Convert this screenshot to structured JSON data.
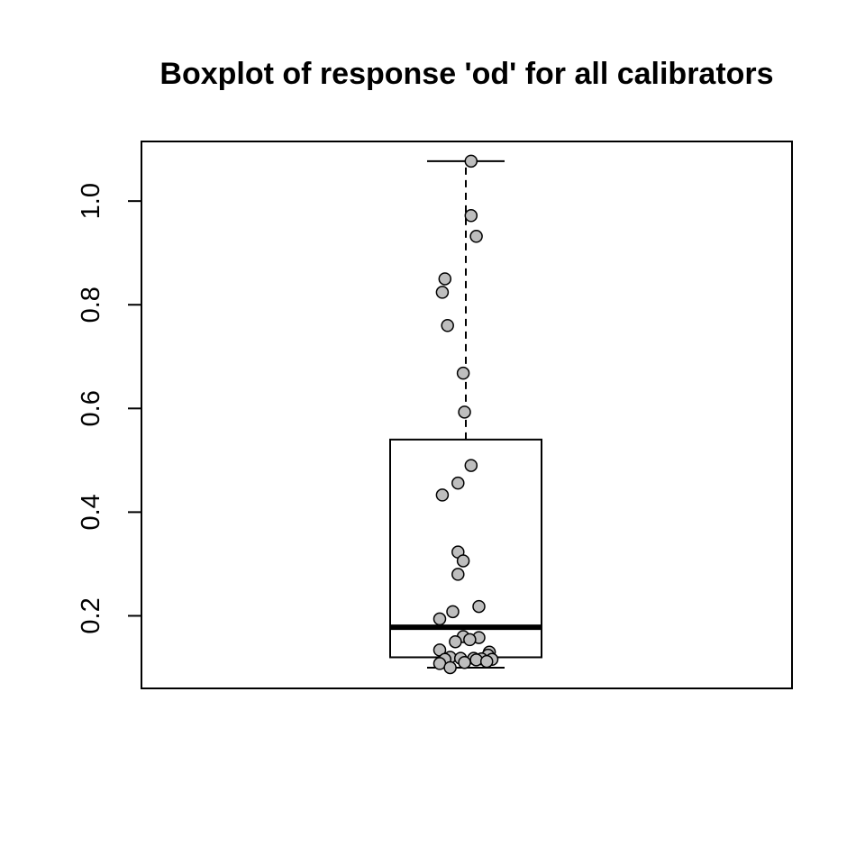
{
  "chart_data": {
    "type": "boxplot",
    "title": "Boxplot of response 'od' for all calibrators",
    "xlabel": "",
    "ylabel": "",
    "ylim": [
      0.06,
      1.115
    ],
    "yticks": [
      0.2,
      0.4,
      0.6,
      0.8,
      1.0
    ],
    "ytick_labels": [
      "0.2",
      "0.4",
      "0.6",
      "0.8",
      "1.0"
    ],
    "box": {
      "whisker_low": 0.1,
      "q1": 0.12,
      "median": 0.178,
      "q3": 0.54,
      "whisker_high": 1.077
    },
    "points": [
      {
        "jitter": 0.02,
        "y": 1.077
      },
      {
        "jitter": 0.02,
        "y": 0.972
      },
      {
        "jitter": 0.04,
        "y": 0.932
      },
      {
        "jitter": -0.08,
        "y": 0.85
      },
      {
        "jitter": -0.09,
        "y": 0.824
      },
      {
        "jitter": -0.07,
        "y": 0.76
      },
      {
        "jitter": -0.01,
        "y": 0.668
      },
      {
        "jitter": -0.005,
        "y": 0.593
      },
      {
        "jitter": 0.02,
        "y": 0.49
      },
      {
        "jitter": -0.03,
        "y": 0.456
      },
      {
        "jitter": -0.09,
        "y": 0.433
      },
      {
        "jitter": -0.03,
        "y": 0.323
      },
      {
        "jitter": -0.01,
        "y": 0.306
      },
      {
        "jitter": -0.03,
        "y": 0.28
      },
      {
        "jitter": 0.05,
        "y": 0.218
      },
      {
        "jitter": -0.05,
        "y": 0.208
      },
      {
        "jitter": -0.1,
        "y": 0.194
      },
      {
        "jitter": -0.01,
        "y": 0.16
      },
      {
        "jitter": 0.05,
        "y": 0.158
      },
      {
        "jitter": 0.015,
        "y": 0.154
      },
      {
        "jitter": -0.04,
        "y": 0.15
      },
      {
        "jitter": -0.1,
        "y": 0.134
      },
      {
        "jitter": 0.09,
        "y": 0.13
      },
      {
        "jitter": 0.085,
        "y": 0.124
      },
      {
        "jitter": -0.06,
        "y": 0.12
      },
      {
        "jitter": -0.02,
        "y": 0.118
      },
      {
        "jitter": 0.03,
        "y": 0.118
      },
      {
        "jitter": 0.06,
        "y": 0.117
      },
      {
        "jitter": -0.08,
        "y": 0.116
      },
      {
        "jitter": 0.1,
        "y": 0.116
      },
      {
        "jitter": 0.04,
        "y": 0.115
      },
      {
        "jitter": 0.08,
        "y": 0.112
      },
      {
        "jitter": -0.005,
        "y": 0.11
      },
      {
        "jitter": -0.1,
        "y": 0.108
      },
      {
        "jitter": -0.06,
        "y": 0.1
      }
    ],
    "colors": {
      "point_fill": "#bebebe",
      "stroke": "#000000"
    },
    "grid": false,
    "legend": "none"
  }
}
